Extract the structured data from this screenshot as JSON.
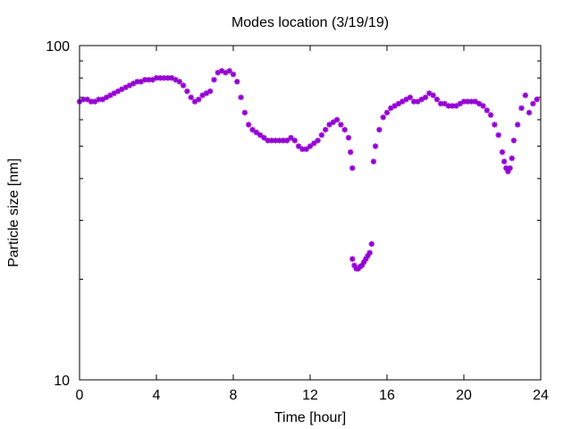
{
  "chart_data": {
    "type": "scatter",
    "title": "Modes location (3/19/19)",
    "xlabel": "Time [hour]",
    "ylabel": "Particle size [nm]",
    "xlim": [
      0,
      24
    ],
    "ylim": [
      10,
      100
    ],
    "yscale": "log",
    "grid": false,
    "legend": "none",
    "marker": "asterisk",
    "color": "#9400d3",
    "x_ticks": [
      {
        "value": 0,
        "label": "0"
      },
      {
        "value": 4,
        "label": "4"
      },
      {
        "value": 8,
        "label": "8"
      },
      {
        "value": 12,
        "label": "12"
      },
      {
        "value": 16,
        "label": "16"
      },
      {
        "value": 20,
        "label": "20"
      },
      {
        "value": 24,
        "label": "24"
      }
    ],
    "y_ticks": [
      {
        "value": 10,
        "label": "10"
      },
      {
        "value": 100,
        "label": "100"
      }
    ],
    "series": [
      {
        "x": [
          0.0,
          0.2,
          0.4,
          0.6,
          0.8,
          1.0,
          1.2,
          1.4,
          1.6,
          1.8,
          2.0,
          2.2,
          2.4,
          2.6,
          2.8,
          3.0,
          3.2,
          3.4,
          3.6,
          3.8,
          4.0,
          4.2,
          4.4,
          4.6,
          4.8,
          5.0,
          5.2,
          5.4,
          5.6,
          5.8,
          6.0,
          6.2,
          6.4,
          6.6,
          6.8,
          7.0,
          7.2,
          7.4,
          7.6,
          7.8,
          8.0,
          8.2,
          8.4,
          8.6,
          8.8,
          9.0,
          9.2,
          9.4,
          9.6,
          9.8,
          10.0,
          10.2,
          10.4,
          10.6,
          10.8,
          11.0,
          11.2,
          11.4,
          11.6,
          11.8,
          12.0,
          12.2,
          12.4,
          12.6,
          12.8,
          13.0,
          13.2,
          13.4,
          13.6,
          13.8,
          14.0,
          14.1,
          14.2,
          14.2,
          14.3,
          14.4,
          14.5,
          14.6,
          14.7,
          14.8,
          14.9,
          15.0,
          15.1,
          15.2,
          15.3,
          15.4,
          15.6,
          15.8,
          16.0,
          16.2,
          16.4,
          16.6,
          16.8,
          17.0,
          17.2,
          17.4,
          17.6,
          17.8,
          18.0,
          18.2,
          18.4,
          18.6,
          18.8,
          19.0,
          19.2,
          19.4,
          19.6,
          19.8,
          20.0,
          20.2,
          20.4,
          20.6,
          20.8,
          21.0,
          21.2,
          21.4,
          21.6,
          21.8,
          22.0,
          22.1,
          22.2,
          22.3,
          22.4,
          22.5,
          22.6,
          22.8,
          23.0,
          23.2,
          23.4,
          23.6,
          23.8
        ],
        "y": [
          68,
          69,
          69,
          68,
          68,
          69,
          69,
          70,
          71,
          72,
          73,
          74,
          75,
          76,
          77,
          78,
          78,
          79,
          79,
          79,
          80,
          80,
          80,
          80,
          80,
          79,
          78,
          76,
          73,
          70,
          68,
          69,
          71,
          72,
          73,
          79,
          83,
          84,
          83,
          84,
          82,
          78,
          70,
          63,
          58,
          56,
          55,
          54,
          53,
          52,
          52,
          52,
          52,
          52,
          52,
          53,
          52,
          50,
          49,
          49,
          50,
          51,
          52,
          54,
          56,
          58,
          59,
          60,
          58,
          56,
          53,
          48,
          43,
          23,
          22,
          21.5,
          21.5,
          21.8,
          22,
          22.5,
          23,
          23.5,
          24,
          25.5,
          45,
          50,
          56,
          61,
          63,
          65,
          66,
          67,
          68,
          69,
          70,
          68,
          68,
          69,
          70,
          72,
          71,
          69,
          67,
          67,
          66,
          66,
          66,
          67,
          68,
          68,
          68,
          68,
          67,
          66,
          64,
          62,
          58,
          54,
          48,
          45,
          43,
          42,
          43,
          46,
          52,
          58,
          65,
          71,
          63,
          67,
          69
        ]
      }
    ]
  }
}
